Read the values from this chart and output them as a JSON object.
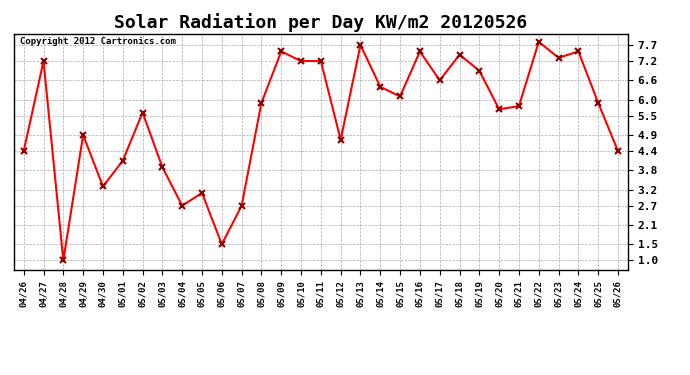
{
  "title": "Solar Radiation per Day KW/m2 20120526",
  "copyright_text": "Copyright 2012 Cartronics.com",
  "x_labels": [
    "04/26",
    "04/27",
    "04/28",
    "04/29",
    "04/30",
    "05/01",
    "05/02",
    "05/03",
    "05/04",
    "05/05",
    "05/06",
    "05/07",
    "05/08",
    "05/09",
    "05/10",
    "05/11",
    "05/12",
    "05/13",
    "05/14",
    "05/15",
    "05/16",
    "05/17",
    "05/18",
    "05/19",
    "05/20",
    "05/21",
    "05/22",
    "05/23",
    "05/24",
    "05/25",
    "05/26"
  ],
  "y_values": [
    4.4,
    7.2,
    1.0,
    4.9,
    3.3,
    4.1,
    5.6,
    3.9,
    2.7,
    3.1,
    1.5,
    2.7,
    5.9,
    7.5,
    7.2,
    7.2,
    4.75,
    7.7,
    6.4,
    6.1,
    7.5,
    6.6,
    7.4,
    6.9,
    5.7,
    5.8,
    7.8,
    7.3,
    7.5,
    5.9,
    4.4
  ],
  "y_ticks": [
    1.0,
    1.5,
    2.1,
    2.7,
    3.2,
    3.8,
    4.4,
    4.9,
    5.5,
    6.0,
    6.6,
    7.2,
    7.7
  ],
  "line_color": "red",
  "marker": "x",
  "marker_color": "darkred",
  "background_color": "#ffffff",
  "grid_color": "#aaaaaa",
  "title_fontsize": 13,
  "ylim_min": 0.7,
  "ylim_max": 8.05
}
